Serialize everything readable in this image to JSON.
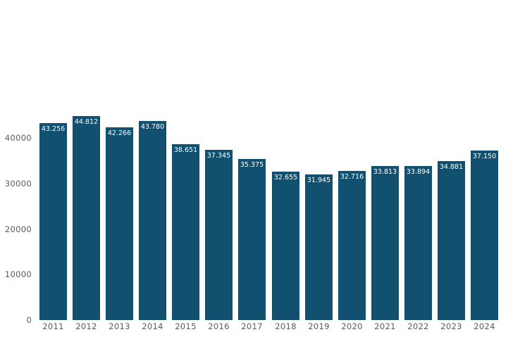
{
  "chart_data": {
    "type": "bar",
    "title": "",
    "xlabel": "",
    "ylabel": "",
    "categories": [
      "2011",
      "2012",
      "2013",
      "2014",
      "2015",
      "2016",
      "2017",
      "2018",
      "2019",
      "2020",
      "2021",
      "2022",
      "2023",
      "2024"
    ],
    "values": [
      43256,
      44812,
      42266,
      43780,
      38651,
      37345,
      35375,
      32655,
      31945,
      32716,
      33813,
      33894,
      34881,
      37150
    ],
    "value_labels": [
      "43.256",
      "44.812",
      "42.266",
      "43.780",
      "38.651",
      "37.345",
      "35.375",
      "32.655",
      "31.945",
      "32.716",
      "33.813",
      "33.894",
      "34.881",
      "37.150"
    ],
    "yticks": [
      0,
      10000,
      20000,
      30000,
      40000
    ],
    "ytick_labels": [
      "0",
      "10000",
      "20000",
      "30000",
      "40000"
    ],
    "ylim": [
      0,
      45000
    ],
    "grid": false,
    "legend_position": "none",
    "bar_color": "#11506F",
    "value_label_color": "#FFFFFF",
    "axis_text_color": "#5A5A5A",
    "background_color": "#FFFFFF"
  }
}
